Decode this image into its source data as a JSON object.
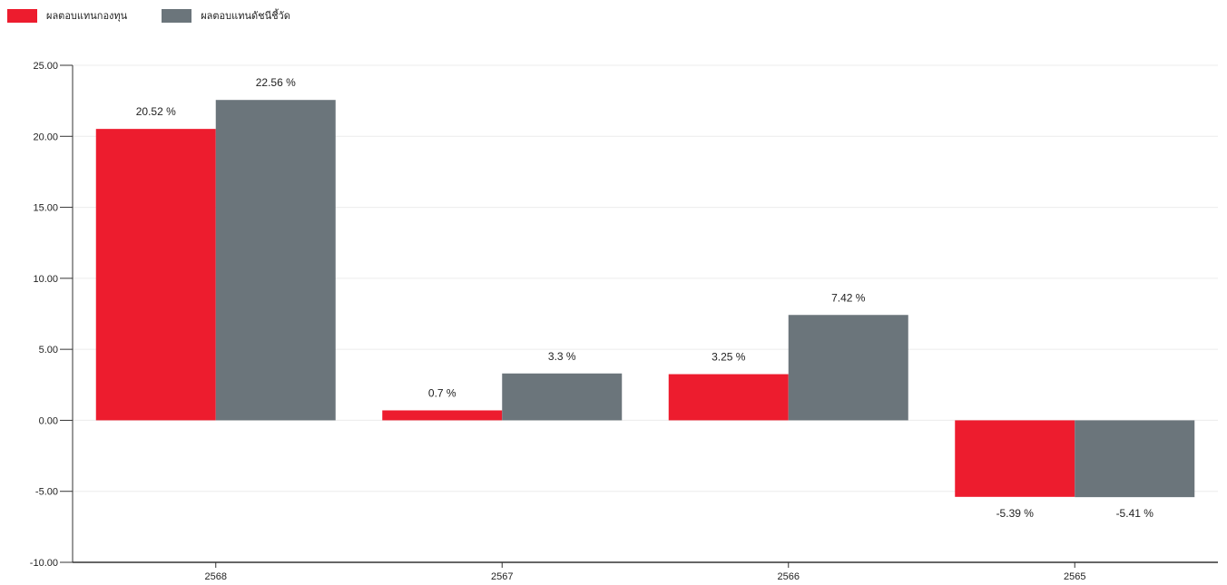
{
  "chart_data": {
    "type": "bar",
    "categories": [
      "2568",
      "2567",
      "2566",
      "2565"
    ],
    "series": [
      {
        "name": "ผลตอบแทนกองทุน",
        "values": [
          20.52,
          0.7,
          3.25,
          -5.39
        ],
        "labels": [
          "20.52 %",
          "0.7 %",
          "3.25 %",
          "-5.39 %"
        ],
        "color": "#ED1C2E"
      },
      {
        "name": "ผลตอบแทนดัชนีชี้วัด",
        "values": [
          22.56,
          3.3,
          7.42,
          -5.41
        ],
        "labels": [
          "22.56 %",
          "3.3 %",
          "7.42 %",
          "-5.41 %"
        ],
        "color": "#6B757B"
      }
    ],
    "y_ticks": [
      "25.00",
      "20.00",
      "15.00",
      "10.00",
      "5.00",
      "0.00",
      "-5.00",
      "-10.00"
    ],
    "ylim": [
      -10,
      25
    ],
    "grid": true,
    "legend_position": "top-left",
    "title": "",
    "xlabel": "",
    "ylabel": ""
  }
}
